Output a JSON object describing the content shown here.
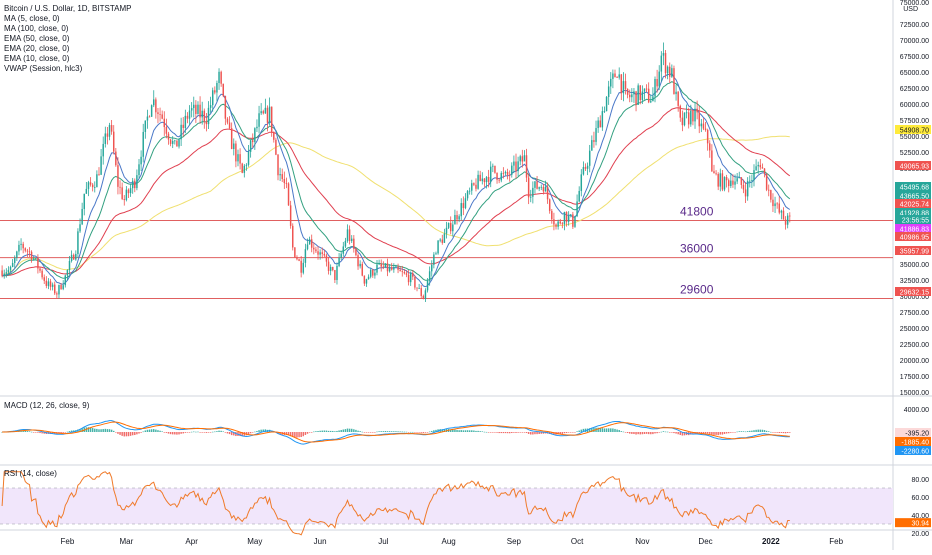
{
  "legend": {
    "title": "Bitcoin / U.S. Dollar, 1D, BITSTAMP",
    "indicators": [
      "MA (5, close, 0)",
      "MA (100, close, 0)",
      "EMA (50, close, 0)",
      "EMA (20, close, 0)",
      "EMA (10, close, 0)",
      "VWAP (Session, hlc3)"
    ]
  },
  "macd_title": "MACD (12, 26, close, 9)",
  "rsi_title": "RSI (14, close)",
  "currency": "USD",
  "top_tick": "75000.00",
  "colors": {
    "up": "#26a69a",
    "down": "#ef5350",
    "ema50": "#e04050",
    "ema20": "#33a080",
    "ema10": "#4a78c8",
    "ma100": "#f0e070",
    "level": "#e06060",
    "macd_line": "#2196f3",
    "signal_line": "#ff6d00",
    "rsi_line": "#f07a2a",
    "rsi_band": "#f1e6fb",
    "level_text": "#5a2a8a"
  },
  "chart_data": {
    "type": "candlestick",
    "x_labels": [
      "Feb",
      "Mar",
      "Apr",
      "May",
      "Jun",
      "Jul",
      "Aug",
      "Sep",
      "Oct",
      "Nov",
      "Dec",
      "2022",
      "Feb"
    ],
    "y_ticks": [
      "72500.00",
      "70000.00",
      "67500.00",
      "65000.00",
      "62500.00",
      "60000.00",
      "57500.00",
      "55000.00",
      "52500.00",
      "50000.00",
      "47500.00",
      "45000.00",
      "42500.00",
      "40000.00",
      "37500.00",
      "35000.00",
      "32500.00",
      "30000.00",
      "27500.00",
      "25000.00",
      "22500.00",
      "20000.00",
      "17500.00",
      "15000.00"
    ],
    "ylim": [
      13000,
      75000
    ],
    "close_path": [
      [
        "2021-01-05",
        34000
      ],
      [
        "2021-01-10",
        38000
      ],
      [
        "2021-01-15",
        36500
      ],
      [
        "2021-01-22",
        32000
      ],
      [
        "2021-01-27",
        30500
      ],
      [
        "2021-01-31",
        33000
      ],
      [
        "2021-02-05",
        37500
      ],
      [
        "2021-02-09",
        46000
      ],
      [
        "2021-02-15",
        48500
      ],
      [
        "2021-02-21",
        57000
      ],
      [
        "2021-02-25",
        47500
      ],
      [
        "2021-02-28",
        45000
      ],
      [
        "2021-03-05",
        48000
      ],
      [
        "2021-03-13",
        61000
      ],
      [
        "2021-03-18",
        58000
      ],
      [
        "2021-03-24",
        53000
      ],
      [
        "2021-03-31",
        59000
      ],
      [
        "2021-04-08",
        58000
      ],
      [
        "2021-04-14",
        64000
      ],
      [
        "2021-04-18",
        56000
      ],
      [
        "2021-04-25",
        49000
      ],
      [
        "2021-05-03",
        57500
      ],
      [
        "2021-05-08",
        58500
      ],
      [
        "2021-05-12",
        50000
      ],
      [
        "2021-05-16",
        46500
      ],
      [
        "2021-05-19",
        37500
      ],
      [
        "2021-05-23",
        34500
      ],
      [
        "2021-05-26",
        39000
      ],
      [
        "2021-06-01",
        36500
      ],
      [
        "2021-06-08",
        33000
      ],
      [
        "2021-06-14",
        40000
      ],
      [
        "2021-06-22",
        32500
      ],
      [
        "2021-06-28",
        34500
      ],
      [
        "2021-07-06",
        34000
      ],
      [
        "2021-07-14",
        32800
      ],
      [
        "2021-07-20",
        29800
      ],
      [
        "2021-07-26",
        37500
      ],
      [
        "2021-08-01",
        40500
      ],
      [
        "2021-08-08",
        44500
      ],
      [
        "2021-08-14",
        47500
      ],
      [
        "2021-08-22",
        49500
      ],
      [
        "2021-08-28",
        48500
      ],
      [
        "2021-09-06",
        51500
      ],
      [
        "2021-09-08",
        46500
      ],
      [
        "2021-09-15",
        47500
      ],
      [
        "2021-09-21",
        40700
      ],
      [
        "2021-09-25",
        42800
      ],
      [
        "2021-09-29",
        41500
      ],
      [
        "2021-10-03",
        48000
      ],
      [
        "2021-10-09",
        54500
      ],
      [
        "2021-10-15",
        61000
      ],
      [
        "2021-10-20",
        65500
      ],
      [
        "2021-10-24",
        61000
      ],
      [
        "2021-10-31",
        61500
      ],
      [
        "2021-11-06",
        61000
      ],
      [
        "2021-11-10",
        67500
      ],
      [
        "2021-11-15",
        64500
      ],
      [
        "2021-11-19",
        56800
      ],
      [
        "2021-11-25",
        58500
      ],
      [
        "2021-11-28",
        57000
      ],
      [
        "2021-12-03",
        53500
      ],
      [
        "2021-12-04",
        49000
      ],
      [
        "2021-12-10",
        47500
      ],
      [
        "2021-12-14",
        48500
      ],
      [
        "2021-12-20",
        46700
      ],
      [
        "2021-12-27",
        51000
      ],
      [
        "2021-12-31",
        46400
      ],
      [
        "2022-01-05",
        43000
      ],
      [
        "2022-01-08",
        41700
      ],
      [
        "2022-01-10",
        41900
      ]
    ],
    "levels": [
      {
        "value": 41800,
        "label": "41800"
      },
      {
        "value": 36000,
        "label": "36000"
      },
      {
        "value": 29600,
        "label": "29600"
      }
    ],
    "price_badges": [
      {
        "value": "49065.93",
        "bg": "#ef5350"
      },
      {
        "value": "45495.68",
        "bg": "#26a69a"
      },
      {
        "value": "43665.50",
        "bg": "#26a69a"
      },
      {
        "value": "42025.74",
        "bg": "#ef5350"
      },
      {
        "value": "41928.88",
        "bg": "#26a69a"
      },
      {
        "value": "23:56:55",
        "bg": "#26a69a"
      },
      {
        "value": "41886.83",
        "bg": "#e040fb"
      },
      {
        "value": "40986.95",
        "bg": "#ef5350"
      },
      {
        "value": "35957.99",
        "bg": "#ef5350"
      },
      {
        "value": "29632.15",
        "bg": "#ef5350"
      }
    ],
    "current_label": {
      "value": "54908.70",
      "bg": "#ffeb3b"
    },
    "macd": {
      "y_ticks": [
        "4000.00"
      ],
      "badges": [
        {
          "value": "-395.20",
          "bg": "#fcd9d9",
          "color": "#131722"
        },
        {
          "value": "-1885.40",
          "bg": "#ff6d00",
          "color": "#ffffff"
        },
        {
          "value": "-2280.60",
          "bg": "#2196f3",
          "color": "#ffffff"
        }
      ]
    },
    "rsi": {
      "y_ticks": [
        "80.00",
        "60.00",
        "40.00",
        "20.00"
      ],
      "badge": {
        "value": "30.94",
        "bg": "#ff6d00"
      },
      "band": [
        30,
        70
      ]
    }
  }
}
